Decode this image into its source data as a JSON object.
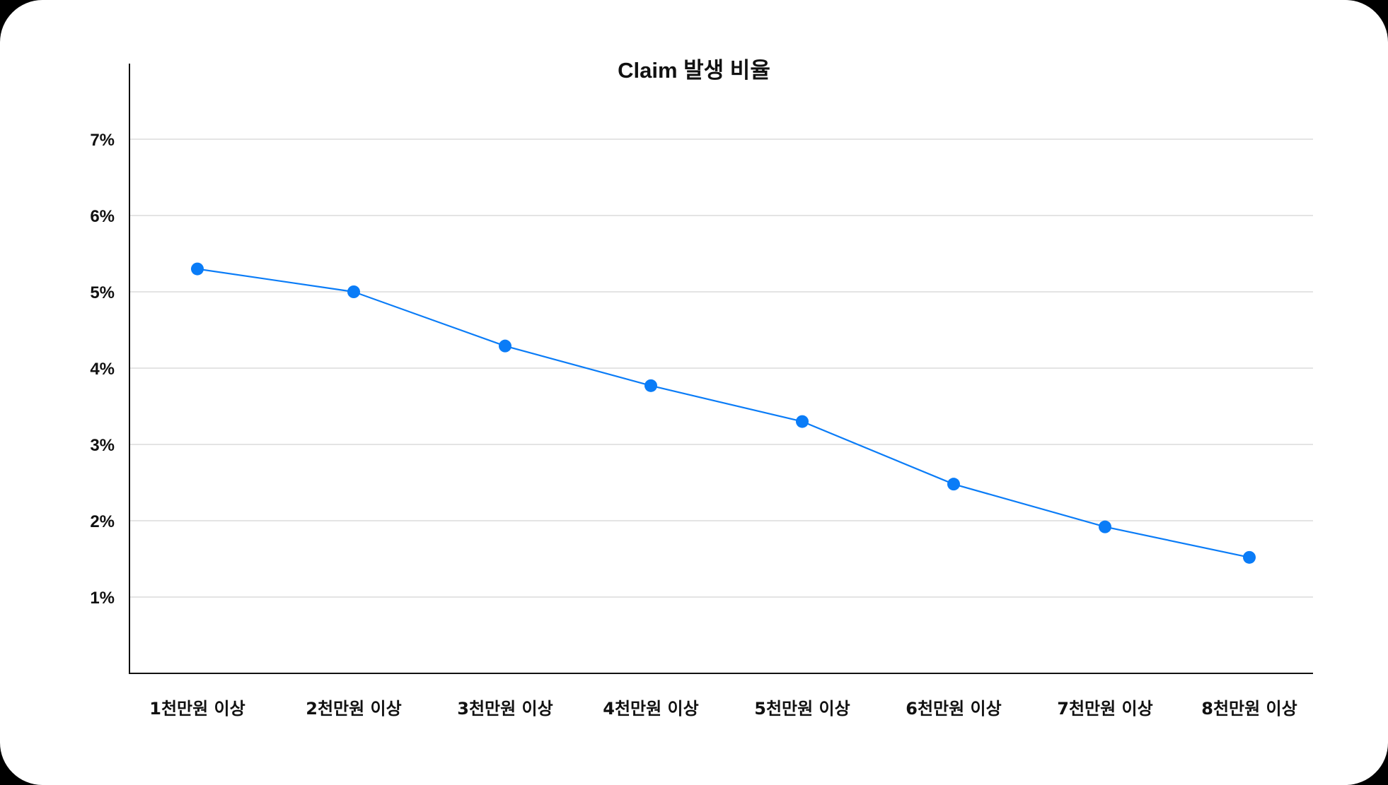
{
  "chart_data": {
    "type": "line",
    "title": "Claim 발생 비율",
    "xlabel": "",
    "ylabel": "",
    "categories": [
      "1천만원 이상",
      "2천만원 이상",
      "3천만원 이상",
      "4천만원 이상",
      "5천만원 이상",
      "6천만원 이상",
      "7천만원 이상",
      "8천만원 이상"
    ],
    "series": [
      {
        "name": "Claim 발생 비율",
        "values": [
          5.3,
          5.0,
          4.29,
          3.77,
          3.3,
          2.48,
          1.92,
          1.52
        ],
        "color": "#0a7cf7"
      }
    ],
    "ylim": [
      0,
      8
    ],
    "yticks": [
      "1%",
      "2%",
      "3%",
      "4%",
      "5%",
      "6%",
      "7%"
    ],
    "grid": true,
    "legend": "none"
  },
  "colors": {
    "line": "#0a7cf7",
    "grid": "#e4e4e4",
    "axis": "#111111"
  }
}
